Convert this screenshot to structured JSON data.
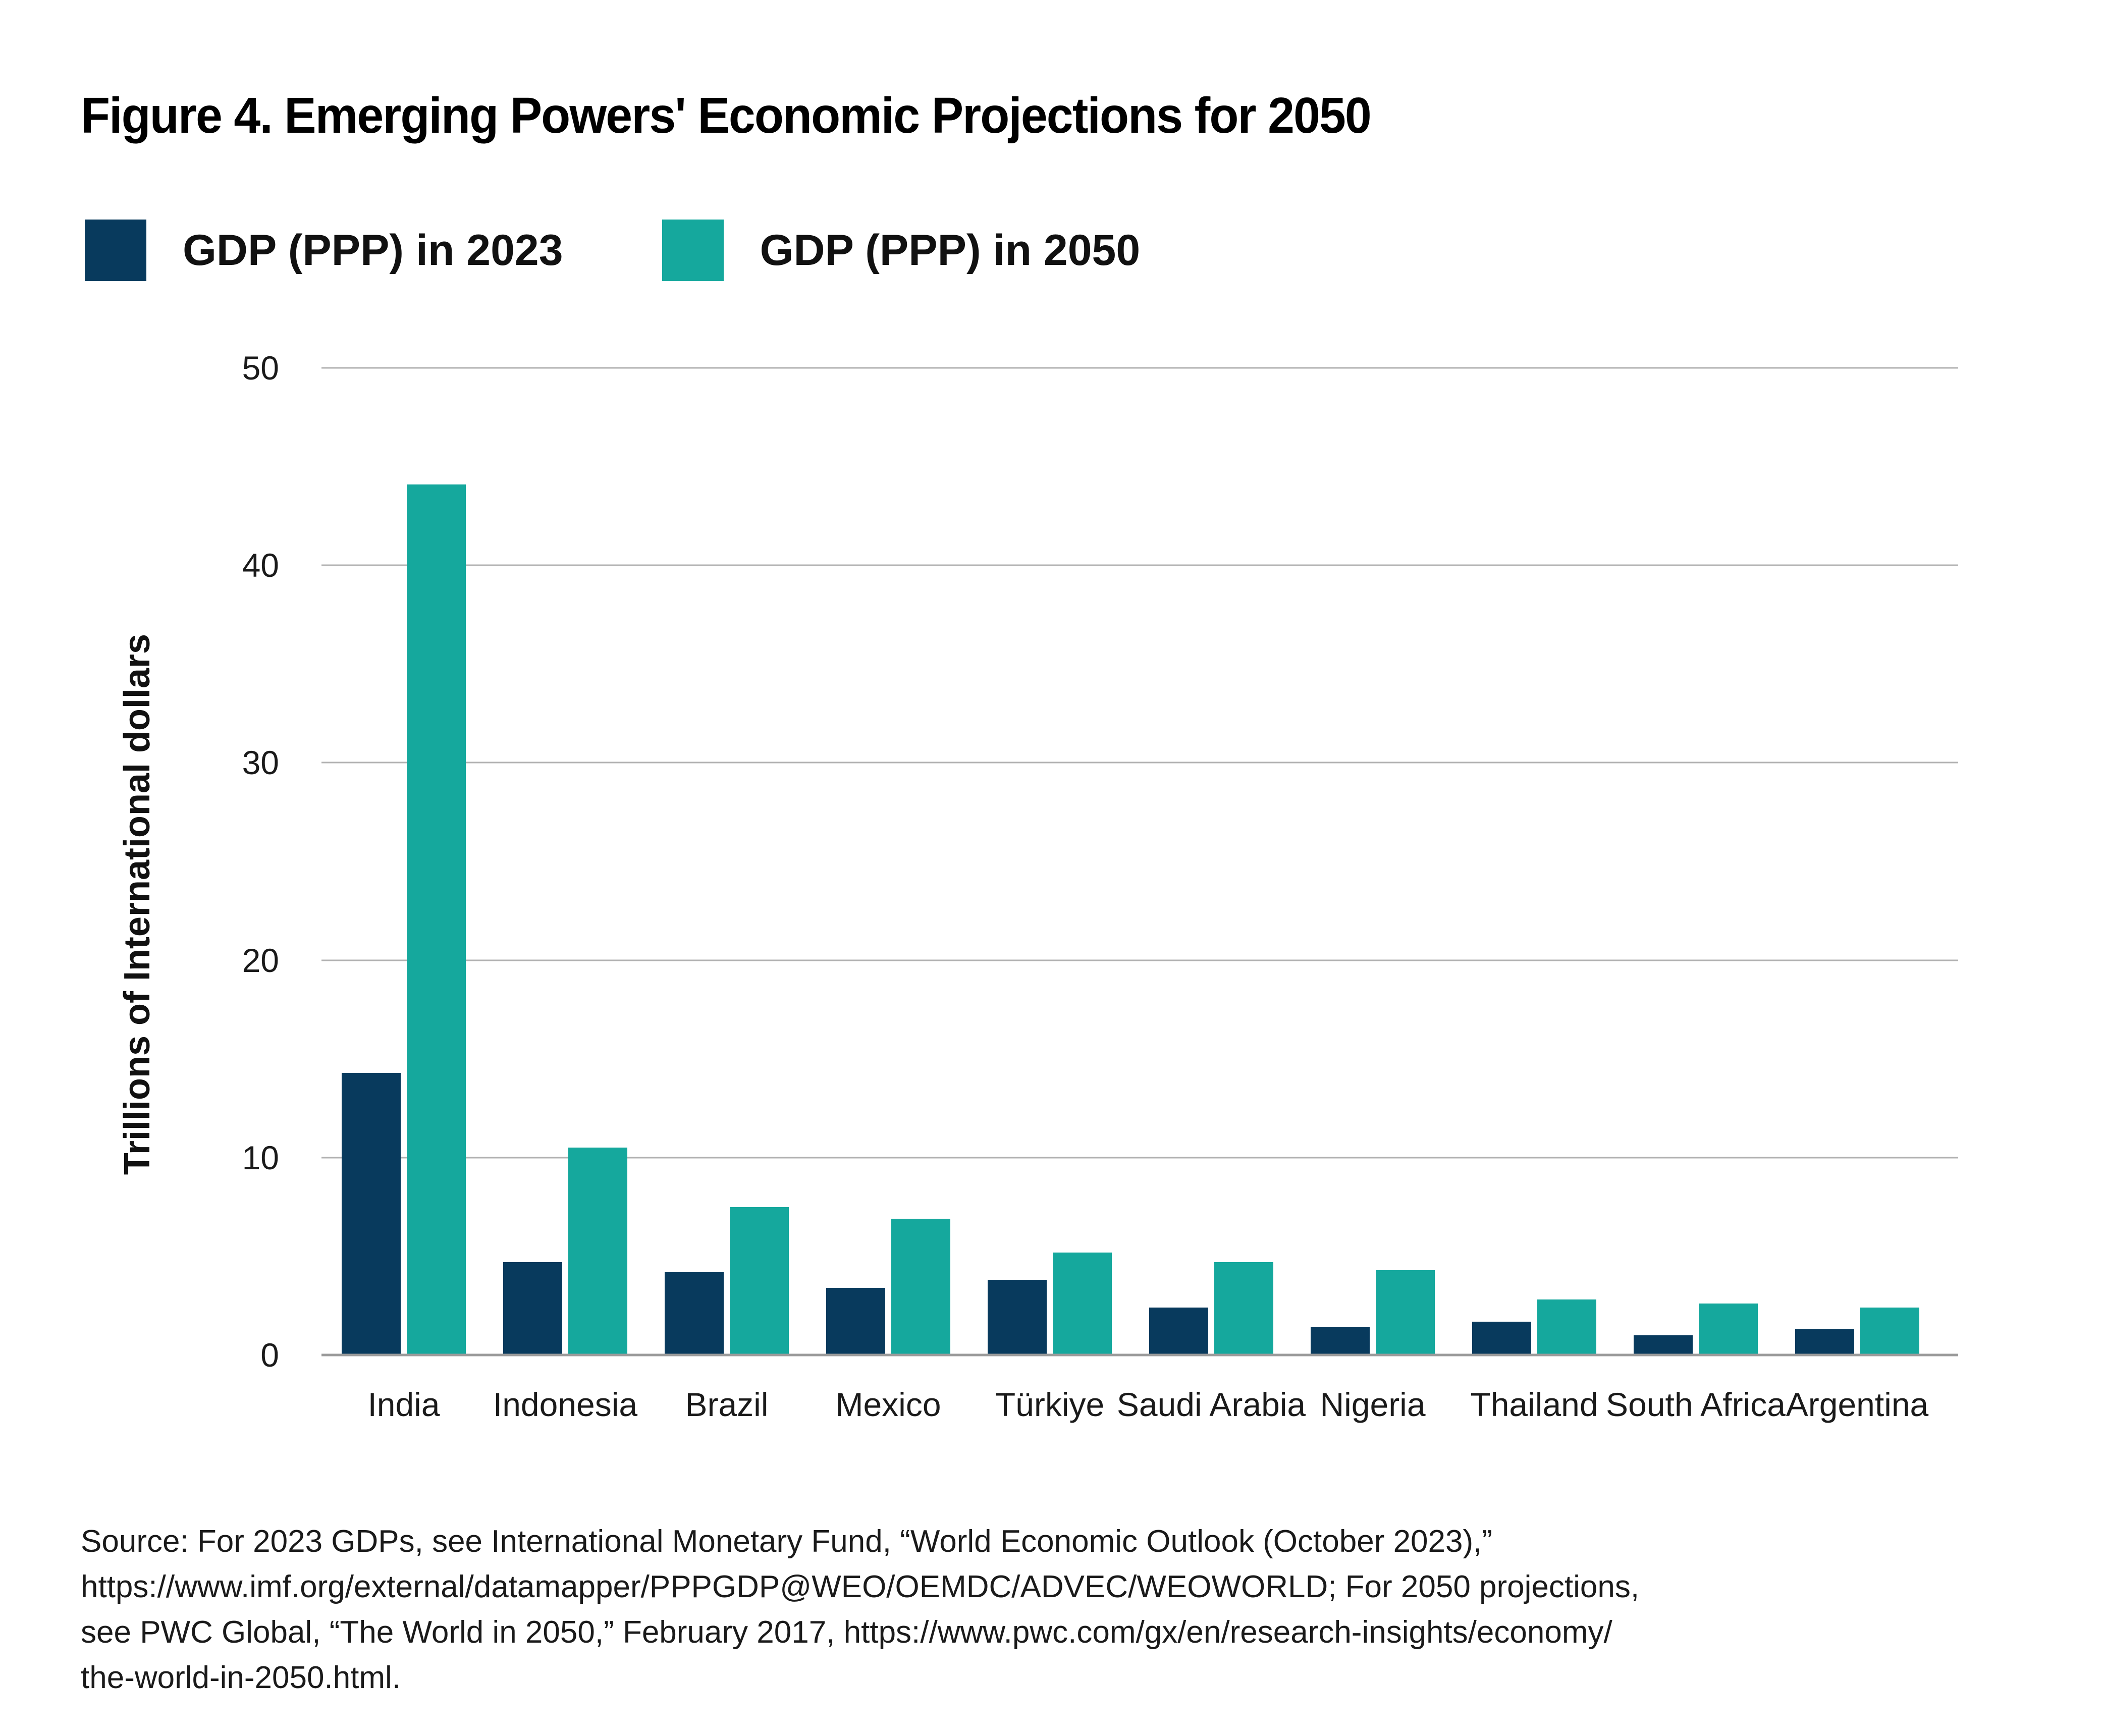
{
  "title": "Figure 4. Emerging Powers' Economic Projections for 2050",
  "legend": [
    {
      "label": "GDP (PPP) in 2023",
      "color": "#083a5d"
    },
    {
      "label": "GDP (PPP) in 2050",
      "color": "#15a89d"
    }
  ],
  "chart_data": {
    "type": "bar",
    "title": "Figure 4. Emerging Powers' Economic Projections for 2050",
    "categories": [
      "India",
      "Indonesia",
      "Brazil",
      "Mexico",
      "Türkiye",
      "Saudi Arabia",
      "Nigeria",
      "Thailand",
      "South Africa",
      "Argentina"
    ],
    "series": [
      {
        "name": "GDP (PPP) in 2023",
        "color": "#083a5d",
        "values": [
          14.3,
          4.7,
          4.2,
          3.4,
          3.8,
          2.4,
          1.4,
          1.7,
          1.0,
          1.3
        ]
      },
      {
        "name": "GDP (PPP) in 2050",
        "color": "#15a89d",
        "values": [
          44.1,
          10.5,
          7.5,
          6.9,
          5.2,
          4.7,
          4.3,
          2.8,
          2.6,
          2.4
        ]
      }
    ],
    "xlabel": "",
    "ylabel": "Trillions of International dollars",
    "ylim": [
      0,
      50
    ],
    "yticks": [
      0,
      10,
      20,
      30,
      40,
      50
    ],
    "grid": "horizontal",
    "legend_position": "top-left",
    "gridline_color": "#b2b2b2",
    "baseline_color": "#9b9b9b"
  },
  "footer": {
    "lines": [
      "Source: For 2023 GDPs, see International Monetary Fund, “World Economic Outlook (October 2023),”",
      "https://www.imf.org/external/datamapper/PPPGDP@WEO/OEMDC/ADVEC/WEOWORLD; For 2050 projections,",
      "see PWC Global, “The World in 2050,” February 2017, https://www.pwc.com/gx/en/research-insights/economy/",
      "the-world-in-2050.html."
    ]
  }
}
